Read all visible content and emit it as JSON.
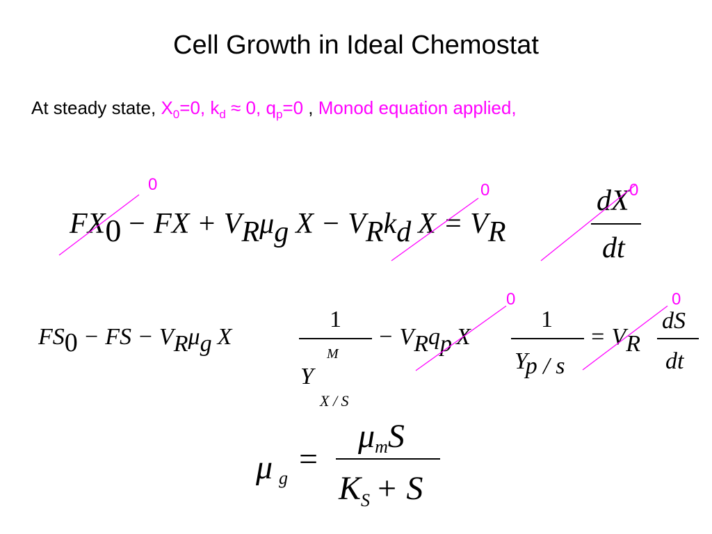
{
  "title": "Cell Growth in Ideal Chemostat",
  "intro": {
    "lead": "At steady state,",
    "conditions": [
      "X",
      "0",
      "=0, k",
      "d",
      "≈ 0, q",
      "p",
      "=0"
    ],
    "separator": ",",
    "note": "Monod equation applied,"
  },
  "equations": [
    {
      "pieces": [
        "FX",
        "0",
        "− FX + V",
        "R",
        "μ",
        "g",
        "X − V",
        "R",
        "k",
        "d",
        "X = V",
        "R",
        "dX",
        "dt"
      ],
      "zeros": [
        "0",
        "0",
        "0"
      ]
    },
    {
      "pieces": [
        "FS",
        "0",
        "− FS − V",
        "R",
        "μ",
        "g",
        "X",
        "1",
        "M",
        "Y",
        "X / S",
        "− V",
        "R",
        "q",
        "p",
        "X",
        "1",
        "Y",
        "p / s",
        "= V",
        "R",
        "dS",
        "dt"
      ],
      "zeros": [
        "0",
        "0"
      ]
    },
    {
      "pieces": [
        "μ",
        "g",
        "=",
        "μ",
        "m",
        "S",
        "K",
        "S",
        "+ S"
      ]
    }
  ]
}
